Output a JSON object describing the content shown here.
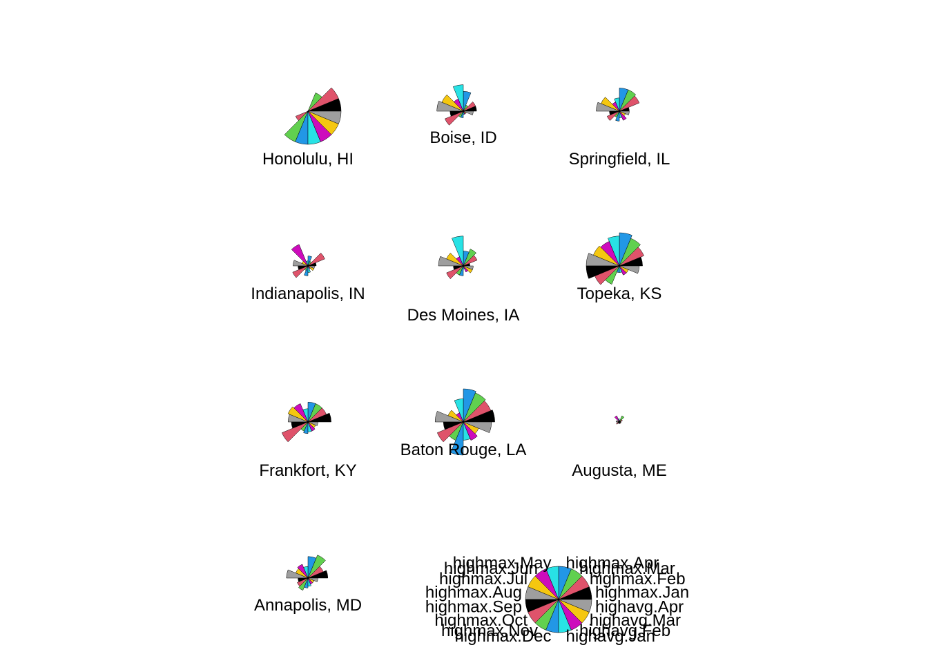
{
  "chart_data": {
    "type": "stars",
    "variables": [
      "highmax.Jan",
      "highmax.Feb",
      "highmax.Mar",
      "highmax.Apr",
      "highmax.May",
      "highmax.Jun",
      "highmax.Jul",
      "highmax.Aug",
      "highmax.Sep",
      "highmax.Oct",
      "highmax.Nov",
      "highmax.Dec",
      "highavg.Jan",
      "highavg.Feb",
      "highavg.Mar",
      "highavg.Apr"
    ],
    "colors": [
      "#000000",
      "#DF536B",
      "#61D04F",
      "#2297E6",
      "#28E2E5",
      "#CD0BBC",
      "#F5C710",
      "#9E9E9E",
      "#000000",
      "#DF536B",
      "#61D04F",
      "#2297E6",
      "#28E2E5",
      "#CD0BBC",
      "#F5C710",
      "#9E9E9E"
    ],
    "series": [
      {
        "name": "Honolulu, HI",
        "values": [
          1.0,
          1.0,
          0.6,
          0.0,
          0.0,
          0.0,
          0.0,
          0.0,
          0.0,
          0.4,
          1.0,
          1.0,
          1.0,
          1.0,
          1.0,
          1.0
        ]
      },
      {
        "name": "Boise, ID",
        "values": [
          0.4,
          0.4,
          0.2,
          0.6,
          0.8,
          0.4,
          0.7,
          0.8,
          0.4,
          0.6,
          0.2,
          0.2,
          0.1,
          0.1,
          0.1,
          0.3
        ]
      },
      {
        "name": "Springfield, IL",
        "values": [
          0.3,
          0.65,
          0.7,
          0.7,
          0.4,
          0.3,
          0.6,
          0.7,
          0.3,
          0.4,
          0.2,
          0.3,
          0.2,
          0.3,
          0.2,
          0.3
        ]
      },
      {
        "name": "Indianapolis, IN",
        "values": [
          0.25,
          0.55,
          0.15,
          0.3,
          0.15,
          0.7,
          0.2,
          0.45,
          0.3,
          0.5,
          0.15,
          0.3,
          0.2,
          0.1,
          0.2,
          0.2
        ]
      },
      {
        "name": "Des Moines, IA",
        "values": [
          0.2,
          0.45,
          0.55,
          0.45,
          0.9,
          0.3,
          0.55,
          0.75,
          0.3,
          0.55,
          0.3,
          0.3,
          0.1,
          0.2,
          0.3,
          0.3
        ]
      },
      {
        "name": "Topeka, KS",
        "values": [
          0.7,
          0.8,
          0.9,
          1.0,
          0.9,
          0.8,
          0.85,
          1.0,
          1.0,
          0.8,
          0.6,
          0.2,
          0.2,
          0.3,
          0.3,
          0.6
        ]
      },
      {
        "name": "Frankfort, KY",
        "values": [
          0.7,
          0.6,
          0.6,
          0.6,
          0.4,
          0.6,
          0.65,
          0.6,
          0.5,
          0.85,
          0.3,
          0.35,
          0.3,
          0.3,
          0.25,
          0.3
        ]
      },
      {
        "name": "Baton Rouge, LA",
        "values": [
          0.95,
          0.9,
          0.95,
          1.0,
          0.7,
          0.3,
          0.5,
          0.85,
          0.6,
          0.85,
          0.6,
          1.0,
          0.55,
          0.6,
          0.5,
          0.85
        ]
      },
      {
        "name": "Augusta, ME",
        "values": [
          0.05,
          0.1,
          0.2,
          0.05,
          0.1,
          0.2,
          0.05,
          0.1,
          0.05,
          0.1,
          0.05,
          0.05,
          0.05,
          0.05,
          0.05,
          0.05
        ]
      },
      {
        "name": "Annapolis, MD",
        "values": [
          0.6,
          0.5,
          0.75,
          0.65,
          0.35,
          0.45,
          0.4,
          0.65,
          0.3,
          0.35,
          0.4,
          0.3,
          0.25,
          0.2,
          0.2,
          0.3
        ]
      }
    ],
    "legend": {
      "type": "key",
      "placement": "bottom-right"
    }
  }
}
